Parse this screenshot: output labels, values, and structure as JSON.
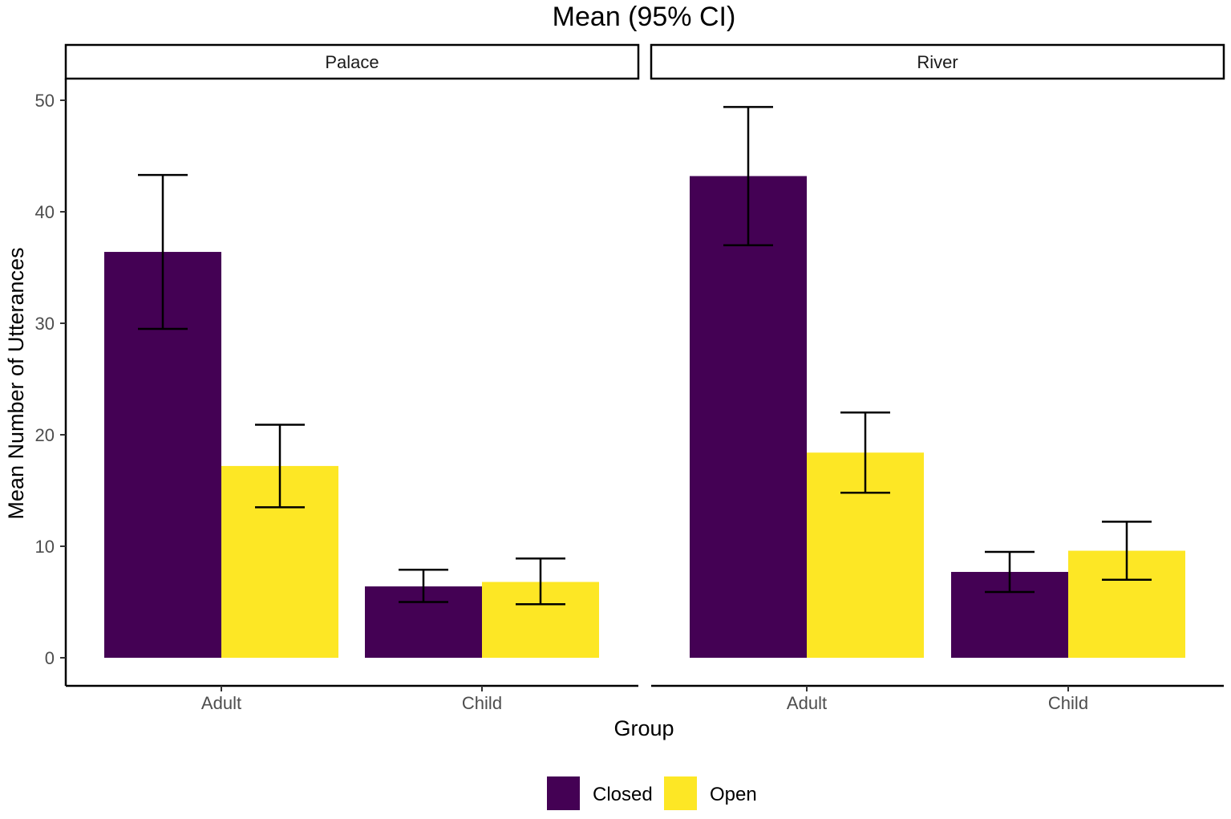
{
  "chart_data": {
    "type": "bar",
    "title": "Mean (95% CI)",
    "xlabel": "Group",
    "ylabel": "Mean Number of Utterances",
    "ylim": [
      0,
      50
    ],
    "yticks": [
      0,
      10,
      20,
      30,
      40,
      50
    ],
    "grid": false,
    "legend_position": "bottom",
    "categories": [
      "Adult",
      "Child"
    ],
    "facets": [
      {
        "name": "Palace",
        "series": [
          {
            "name": "Closed",
            "values": [
              36.4,
              6.4
            ],
            "ci_low": [
              29.5,
              5.0
            ],
            "ci_high": [
              43.3,
              7.9
            ]
          },
          {
            "name": "Open",
            "values": [
              17.2,
              6.8
            ],
            "ci_low": [
              13.5,
              4.8
            ],
            "ci_high": [
              20.9,
              8.9
            ]
          }
        ]
      },
      {
        "name": "River",
        "series": [
          {
            "name": "Closed",
            "values": [
              43.2,
              7.7
            ],
            "ci_low": [
              37.0,
              5.9
            ],
            "ci_high": [
              49.4,
              9.5
            ]
          },
          {
            "name": "Open",
            "values": [
              18.4,
              9.6
            ],
            "ci_low": [
              14.8,
              7.0
            ],
            "ci_high": [
              22.0,
              12.2
            ]
          }
        ]
      }
    ],
    "legend": [
      {
        "name": "Closed",
        "color": "#440154"
      },
      {
        "name": "Open",
        "color": "#FDE725"
      }
    ]
  }
}
